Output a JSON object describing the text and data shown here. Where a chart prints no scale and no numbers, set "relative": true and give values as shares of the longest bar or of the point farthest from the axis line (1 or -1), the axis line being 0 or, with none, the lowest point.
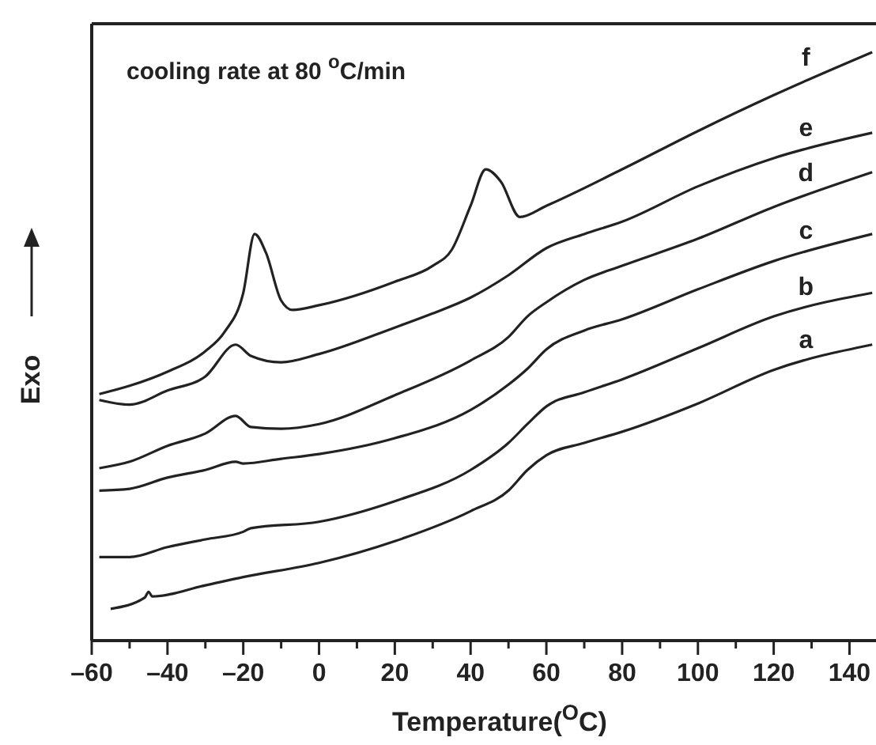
{
  "chart_data": {
    "type": "line",
    "relative": true,
    "xlabel": "Temperature($^{O}$C)",
    "ylabel": "Exo",
    "annotations": [
      "cooling rate at 80 $^{o}$C/min"
    ],
    "xlim": [
      -60,
      147
    ],
    "xticks": [
      {
        "value": -60,
        "label": "–60"
      },
      {
        "value": -50,
        "label": null
      },
      {
        "value": -40,
        "label": "–40"
      },
      {
        "value": -30,
        "label": null
      },
      {
        "value": -20,
        "label": "–20"
      },
      {
        "value": -10,
        "label": null
      },
      0,
      {
        "value": 10,
        "label": null
      },
      20,
      {
        "value": 30,
        "label": null
      },
      40,
      {
        "value": 50,
        "label": null
      },
      60,
      {
        "value": 70,
        "label": null
      },
      80,
      {
        "value": 90,
        "label": null
      },
      100,
      {
        "value": 110,
        "label": null
      },
      120,
      {
        "value": 130,
        "label": null
      },
      140
    ],
    "tick_labels": "x",
    "grid": false,
    "legend": false,
    "marker": "none",
    "line_style": "solid",
    "series": [
      {
        "name": "a",
        "color": "#222222",
        "x": [
          -55,
          -46,
          -45,
          -44,
          -30,
          -20,
          0,
          20,
          40,
          50,
          55,
          60,
          70,
          80,
          100,
          120,
          146
        ],
        "values": [
          0.054,
          0.073,
          0.083,
          0.075,
          0.094,
          0.108,
          0.132,
          0.169,
          0.22,
          0.255,
          0.29,
          0.315,
          0.336,
          0.355,
          0.403,
          0.46,
          0.503
        ]
      },
      {
        "name": "b",
        "color": "#222222",
        "x": [
          -58,
          -50,
          -40,
          -30,
          -20,
          -18,
          0,
          20,
          40,
          50,
          55,
          60,
          70,
          80,
          100,
          120,
          146
        ],
        "values": [
          0.142,
          0.142,
          0.159,
          0.172,
          0.185,
          0.191,
          0.202,
          0.237,
          0.29,
          0.336,
          0.368,
          0.398,
          0.422,
          0.444,
          0.497,
          0.551,
          0.591
        ]
      },
      {
        "name": "c",
        "color": "#222222",
        "x": [
          -58,
          -50,
          -40,
          -30,
          -22,
          -20,
          -10,
          0,
          20,
          40,
          50,
          55,
          60,
          70,
          80,
          100,
          120,
          146
        ],
        "values": [
          0.255,
          0.258,
          0.277,
          0.29,
          0.304,
          0.301,
          0.309,
          0.317,
          0.344,
          0.392,
          0.435,
          0.462,
          0.495,
          0.527,
          0.546,
          0.597,
          0.645,
          0.691
        ]
      },
      {
        "name": "d",
        "color": "#222222",
        "x": [
          -58,
          -50,
          -40,
          -30,
          -22,
          -18,
          -10,
          0,
          20,
          40,
          50,
          55,
          60,
          70,
          80,
          100,
          120,
          146
        ],
        "values": [
          0.293,
          0.304,
          0.331,
          0.352,
          0.382,
          0.363,
          0.36,
          0.368,
          0.417,
          0.476,
          0.516,
          0.551,
          0.575,
          0.613,
          0.637,
          0.683,
          0.737,
          0.796
        ]
      },
      {
        "name": "e",
        "color": "#222222",
        "x": [
          -58,
          -50,
          -40,
          -30,
          -22,
          -18,
          -10,
          0,
          20,
          30,
          40,
          50,
          60,
          70,
          80,
          100,
          120,
          146
        ],
        "values": [
          0.409,
          0.401,
          0.425,
          0.449,
          0.503,
          0.484,
          0.473,
          0.487,
          0.532,
          0.556,
          0.583,
          0.621,
          0.667,
          0.691,
          0.712,
          0.772,
          0.82,
          0.863
        ]
      },
      {
        "name": "f",
        "color": "#222222",
        "x": [
          -58,
          -50,
          -40,
          -30,
          -25,
          -20,
          -17,
          -14,
          -10,
          -7,
          0,
          20,
          30,
          35,
          40,
          44,
          48,
          53,
          60,
          80,
          100,
          120,
          146
        ],
        "values": [
          0.419,
          0.433,
          0.457,
          0.492,
          0.524,
          0.591,
          0.691,
          0.659,
          0.578,
          0.562,
          0.57,
          0.61,
          0.637,
          0.664,
          0.739,
          0.801,
          0.78,
          0.72,
          0.739,
          0.801,
          0.866,
          0.927,
          1
        ]
      }
    ]
  }
}
